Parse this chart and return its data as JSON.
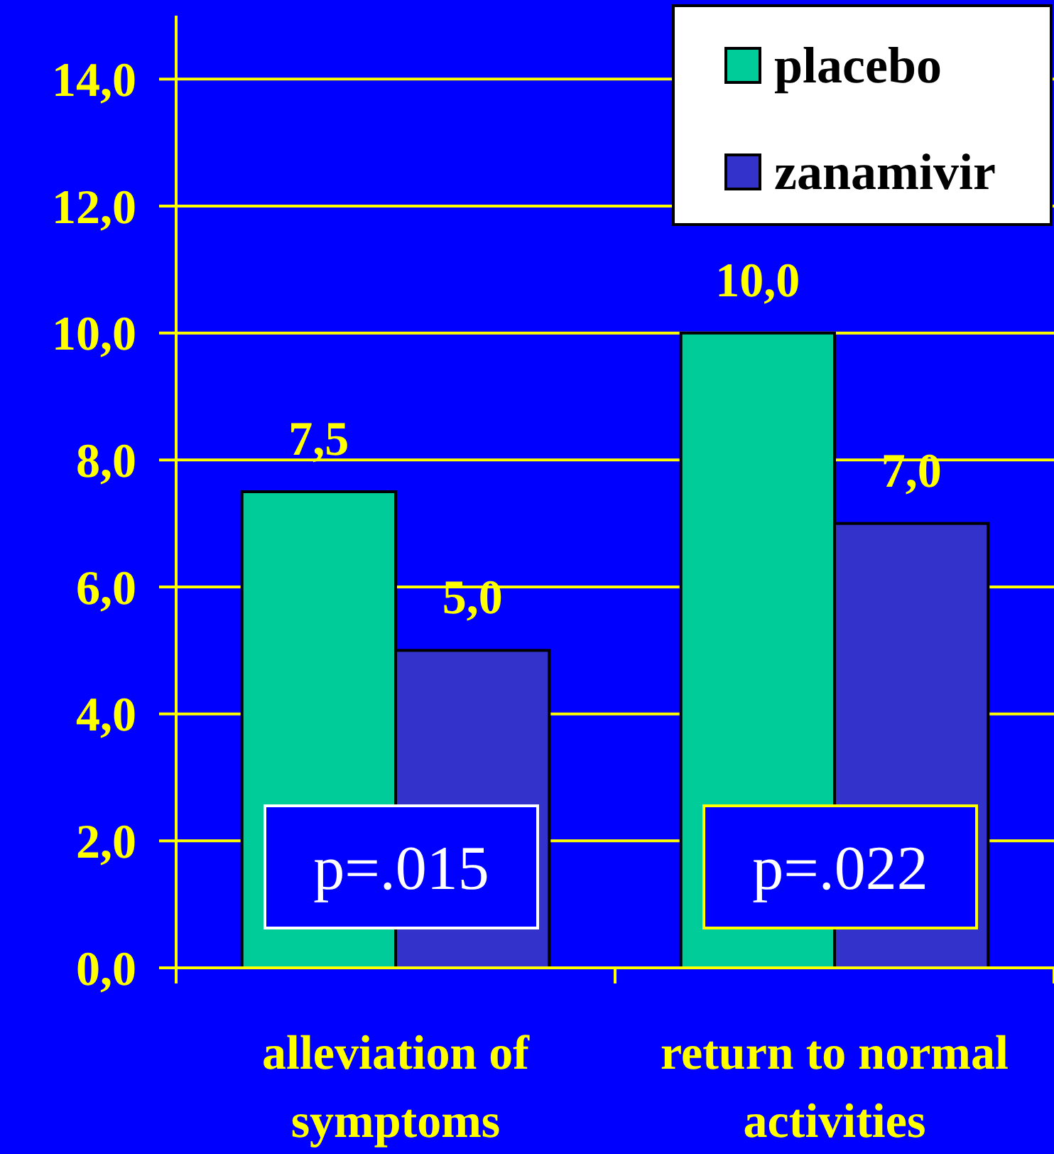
{
  "chart_data": {
    "type": "bar",
    "categories": [
      "alleviation of symptoms",
      "return to normal activities"
    ],
    "series": [
      {
        "name": "placebo",
        "color": "#00cc99",
        "values": [
          7.5,
          10.0
        ],
        "value_labels": [
          "7,5",
          "10,0"
        ]
      },
      {
        "name": "zanamivir",
        "color": "#3333cc",
        "values": [
          5.0,
          7.0
        ],
        "value_labels": [
          "5,0",
          "7,0"
        ]
      }
    ],
    "ylim": [
      0,
      15
    ],
    "yticks": [
      {
        "value": 0,
        "label": "0,0"
      },
      {
        "value": 2,
        "label": "2,0"
      },
      {
        "value": 4,
        "label": "4,0"
      },
      {
        "value": 6,
        "label": "6,0"
      },
      {
        "value": 8,
        "label": "8,0"
      },
      {
        "value": 10,
        "label": "10,0"
      },
      {
        "value": 12,
        "label": "12,0"
      },
      {
        "value": 14,
        "label": "14,0"
      }
    ],
    "grid": "y",
    "legend": "top right",
    "annotations": [
      "p=.015",
      "p=.022"
    ]
  }
}
